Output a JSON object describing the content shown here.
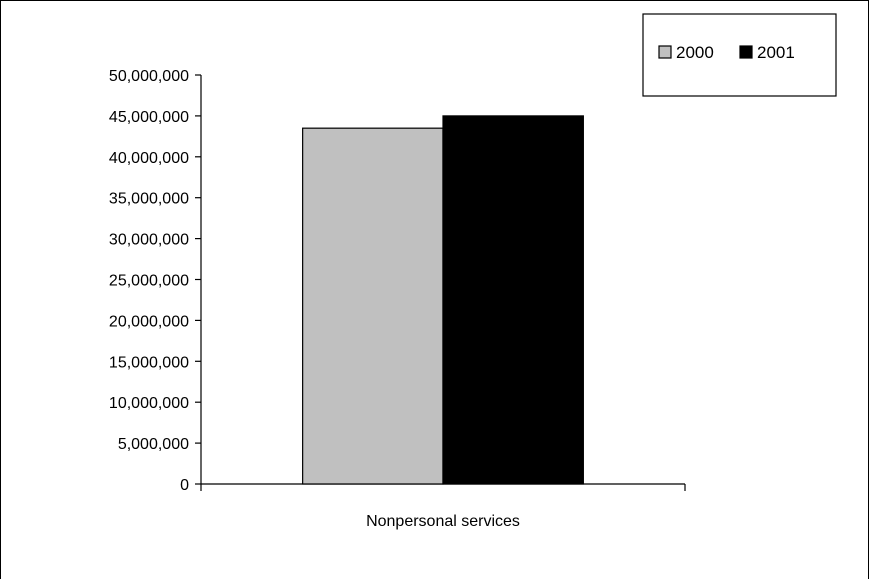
{
  "chart_data": {
    "type": "bar",
    "title": "",
    "xlabel": "",
    "ylabel": "",
    "categories": [
      "Nonpersonal services"
    ],
    "series": [
      {
        "name": "2000",
        "values": [
          43500000
        ],
        "color": "#c0c0c0"
      },
      {
        "name": "2001",
        "values": [
          45000000
        ],
        "color": "#000000"
      }
    ],
    "ylim": [
      0,
      50000000
    ],
    "yticks": [
      0,
      5000000,
      10000000,
      15000000,
      20000000,
      25000000,
      30000000,
      35000000,
      40000000,
      45000000,
      50000000
    ],
    "ytick_labels": [
      "0",
      "5,000,000",
      "10,000,000",
      "15,000,000",
      "20,000,000",
      "25,000,000",
      "30,000,000",
      "35,000,000",
      "40,000,000",
      "45,000,000",
      "50,000,000"
    ],
    "grid": false,
    "legend_position": "top-right"
  }
}
